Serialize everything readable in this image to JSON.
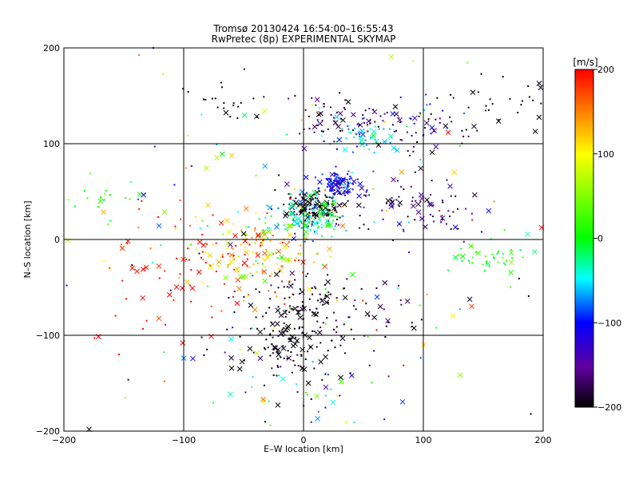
{
  "chart_data": {
    "type": "scatter",
    "title": "Tromsø 20130424 16:54:00–16:55:43",
    "subtitle": "RwPretec (8p) EXPERIMENTAL SKYMAP",
    "xlabel": "E–W location [km]",
    "ylabel": "N–S location [km]",
    "xlim": [
      -200,
      200
    ],
    "ylim": [
      -200,
      200
    ],
    "xticks": [
      -200,
      -100,
      0,
      100,
      200
    ],
    "yticks": [
      -200,
      -100,
      0,
      100,
      200
    ],
    "grid": true,
    "colorbar": {
      "label": "[m/s]",
      "range": [
        -200,
        200
      ],
      "ticks": [
        200,
        100,
        0,
        -100,
        -200
      ],
      "placement": "right"
    },
    "clusters": [
      {
        "x": 10,
        "y": 35,
        "sx": 12,
        "sy": 8,
        "n": 140,
        "v": -200,
        "vs": 10
      },
      {
        "x": 30,
        "y": 58,
        "sx": 8,
        "sy": 6,
        "n": 110,
        "v": -110,
        "vs": 15
      },
      {
        "x": 0,
        "y": 22,
        "sx": 18,
        "sy": 10,
        "n": 150,
        "v": -30,
        "vs": 40
      },
      {
        "x": -40,
        "y": -15,
        "sx": 30,
        "sy": 20,
        "n": 170,
        "v": 130,
        "vs": 60
      },
      {
        "x": -110,
        "y": -35,
        "sx": 40,
        "sy": 35,
        "n": 60,
        "v": 190,
        "vs": 15
      },
      {
        "x": -10,
        "y": -110,
        "sx": 25,
        "sy": 20,
        "n": 140,
        "v": -195,
        "vs": 10
      },
      {
        "x": -5,
        "y": -65,
        "sx": 20,
        "sy": 18,
        "n": 70,
        "v": -195,
        "vs": 10
      },
      {
        "x": 30,
        "y": 125,
        "sx": 25,
        "sy": 10,
        "n": 70,
        "v": -180,
        "vs": 25
      },
      {
        "x": 50,
        "y": 105,
        "sx": 15,
        "sy": 8,
        "n": 50,
        "v": -55,
        "vs": 25
      },
      {
        "x": 100,
        "y": 120,
        "sx": 20,
        "sy": 15,
        "n": 55,
        "v": -150,
        "vs": 50
      },
      {
        "x": 90,
        "y": 35,
        "sx": 30,
        "sy": 15,
        "n": 80,
        "v": -170,
        "vs": 30
      },
      {
        "x": 155,
        "y": -20,
        "sx": 18,
        "sy": 8,
        "n": 45,
        "v": 10,
        "vs": 25
      },
      {
        "x": -170,
        "y": 45,
        "sx": 15,
        "sy": 10,
        "n": 18,
        "v": 20,
        "vs": 25
      },
      {
        "x": -70,
        "y": 140,
        "sx": 20,
        "sy": 15,
        "n": 22,
        "v": -200,
        "vs": 10
      },
      {
        "x": 10,
        "y": -160,
        "sx": 40,
        "sy": 20,
        "n": 40,
        "v": -60,
        "vs": 80
      },
      {
        "x": 60,
        "y": -70,
        "sx": 30,
        "sy": 15,
        "n": 35,
        "v": -190,
        "vs": 20
      },
      {
        "x": 0,
        "y": 0,
        "sx": 120,
        "sy": 110,
        "n": 200,
        "v": 0,
        "vs": 140
      },
      {
        "x": 160,
        "y": 140,
        "sx": 25,
        "sy": 15,
        "n": 30,
        "v": -200,
        "vs": 10
      }
    ]
  }
}
